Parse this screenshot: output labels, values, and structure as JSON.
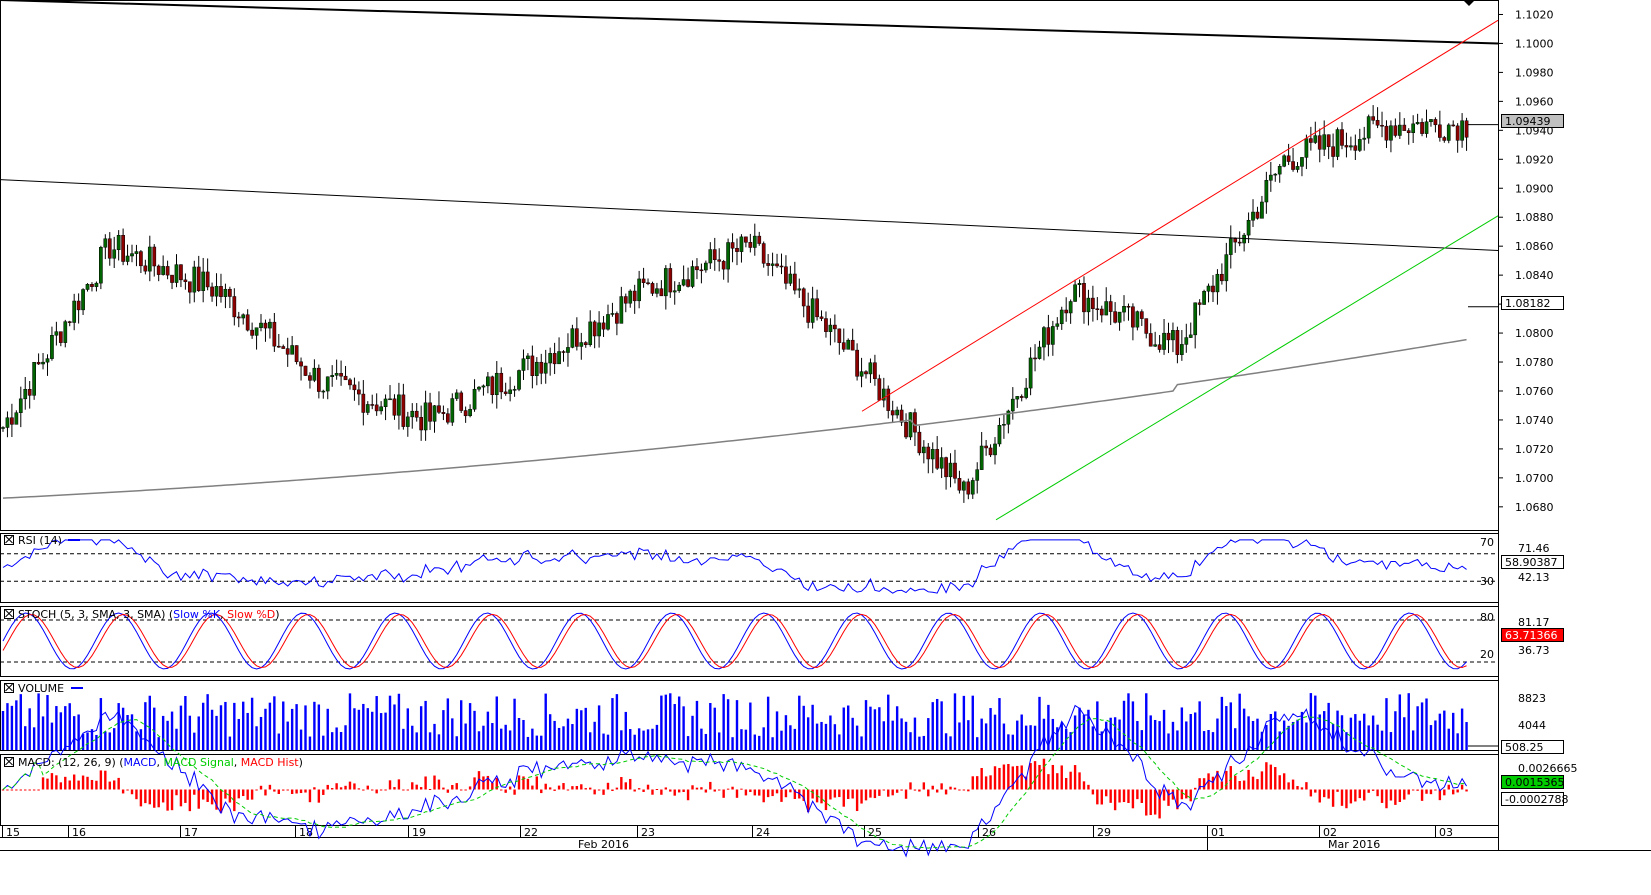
{
  "chart_data": {
    "type": "candlestick",
    "symbol_note": "",
    "price_pane": {
      "y_range": [
        1.0664,
        1.103
      ],
      "y_ticks": [
        "1.1020",
        "1.1000",
        "1.0980",
        "1.0960",
        "1.0940",
        "1.0920",
        "1.0900",
        "1.0880",
        "1.0860",
        "1.0840",
        "1.0820",
        "1.0800",
        "1.0780",
        "1.0760",
        "1.0740",
        "1.0720",
        "1.0700",
        "1.0680"
      ],
      "last_price_tag": "1.09439",
      "ma_price_tag": "1.08182",
      "last_price": 1.09439,
      "ma_value": 1.08182,
      "key_closes": [
        {
          "label": "15",
          "close": 1.0735
        },
        {
          "label": "16",
          "close": 1.086
        },
        {
          "label": "17",
          "close": 1.083
        },
        {
          "label": "18",
          "close": 1.0765
        },
        {
          "label": "19",
          "close": 1.074
        },
        {
          "label": "22",
          "close": 1.078
        },
        {
          "label": "23",
          "close": 1.083
        },
        {
          "label": "24",
          "close": 1.086
        },
        {
          "label": "25",
          "close": 1.078
        },
        {
          "label": "26",
          "close": 1.069
        },
        {
          "label": "29",
          "close": 1.083
        },
        {
          "label": "01",
          "close": 1.079
        },
        {
          "label": "02",
          "close": 1.092
        },
        {
          "label": "03",
          "close": 1.0944
        }
      ],
      "trendlines": [
        {
          "name": "upper-resistance",
          "color": "#000000"
        },
        {
          "name": "long-resistance",
          "color": "#000000"
        },
        {
          "name": "channel-top",
          "color": "#ff0000"
        },
        {
          "name": "channel-bottom",
          "color": "#00cc00"
        },
        {
          "name": "moving-average",
          "color": "#808080"
        }
      ]
    },
    "rsi": {
      "title": "RSI (14)",
      "levels": [
        "70",
        "30"
      ],
      "values_tags": [
        "71.46",
        "58.90387",
        "42.13"
      ],
      "last": 58.90387
    },
    "stoch": {
      "title_prefix": "STOCH (5, 3, SMA, 3, SMA) (",
      "k_label": "Slow %K",
      "sep": ", ",
      "d_label": "Slow %D",
      "title_suffix": ")",
      "levels": [
        "80",
        "20"
      ],
      "values_tags": [
        "81.17",
        "63.71366",
        "36.73"
      ],
      "last": 63.71366
    },
    "volume": {
      "title": "VOLUME",
      "ticks": [
        "8823",
        "4044"
      ],
      "last_tag": "508.25",
      "last": 508.25
    },
    "macd": {
      "title_prefix": "MACD: (12, 26, 9) (",
      "macd_label": "MACD",
      "signal_label": "MACD Signal",
      "hist_label": "MACD Hist",
      "title_suffix": ")",
      "values_tags": [
        "0.0026665",
        "0.0015365",
        "-0.0002788"
      ],
      "macd_last": 0.0015365,
      "hist_last": -0.0002788
    },
    "x_axis": {
      "day_labels": [
        "15",
        "16",
        "17",
        "18",
        "19",
        "22",
        "23",
        "24",
        "25",
        "26",
        "29",
        "01",
        "02",
        "03"
      ],
      "month_labels": [
        "Feb 2016",
        "Mar 2016"
      ]
    },
    "colors": {
      "up_candle": "#006400",
      "down_candle": "#8b0000",
      "rsi_line": "#0000ff",
      "stoch_k": "#0000ff",
      "stoch_d": "#ff0000",
      "volume": "#0000ff",
      "macd": "#0000ff",
      "signal": "#00cc00",
      "hist": "#ff0000",
      "last_tag_bg": "#c0c0c0",
      "stoch_tag_bg": "#ff0000",
      "macd_tag_bg": "#00cc00"
    }
  }
}
